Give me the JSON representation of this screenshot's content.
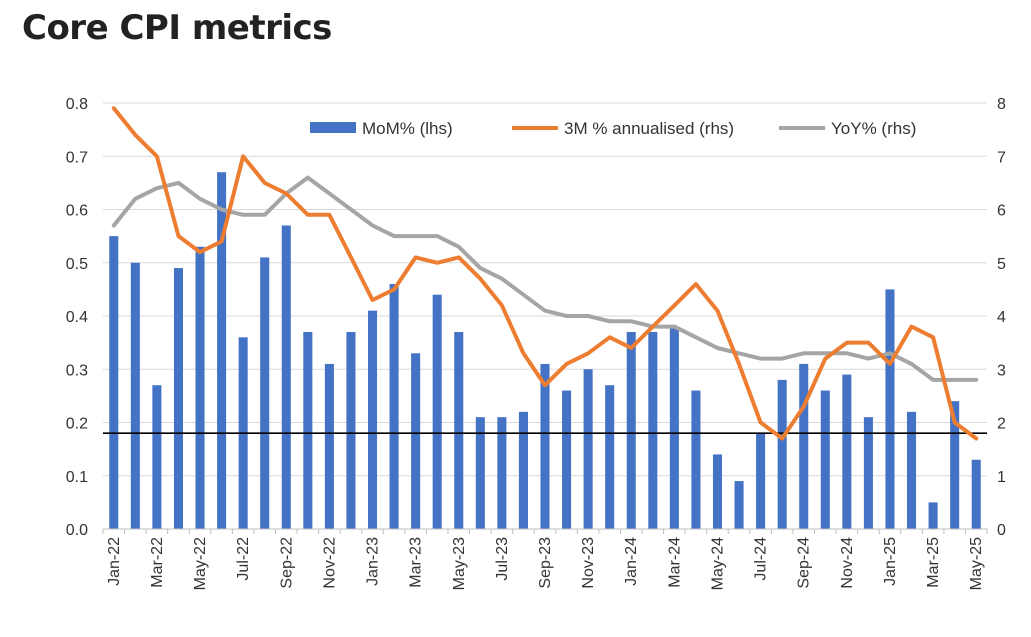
{
  "chart_data": {
    "type": "bar+line",
    "title": "Core CPI metrics",
    "categories": [
      "Jan-22",
      "Feb-22",
      "Mar-22",
      "Apr-22",
      "May-22",
      "Jun-22",
      "Jul-22",
      "Aug-22",
      "Sep-22",
      "Oct-22",
      "Nov-22",
      "Dec-22",
      "Jan-23",
      "Feb-23",
      "Mar-23",
      "Apr-23",
      "May-23",
      "Jun-23",
      "Jul-23",
      "Aug-23",
      "Sep-23",
      "Oct-23",
      "Nov-23",
      "Dec-23",
      "Jan-24",
      "Feb-24",
      "Mar-24",
      "Apr-24",
      "May-24",
      "Jun-24",
      "Jul-24",
      "Aug-24",
      "Sep-24",
      "Oct-24",
      "Nov-24",
      "Dec-24",
      "Jan-25",
      "Feb-25",
      "Mar-25",
      "Apr-25",
      "May-25"
    ],
    "x_tick_labels": [
      "Jan-22",
      "Mar-22",
      "May-22",
      "Jul-22",
      "Sep-22",
      "Nov-22",
      "Jan-23",
      "Mar-23",
      "May-23",
      "Jul-23",
      "Sep-23",
      "Nov-23",
      "Jan-24",
      "Mar-24",
      "May-24",
      "Jul-24",
      "Sep-24",
      "Nov-24",
      "Jan-25",
      "Mar-25",
      "May-25"
    ],
    "series": [
      {
        "name": "MoM% (lhs)",
        "type": "bar",
        "axis": "left",
        "color": "#4472C4",
        "values": [
          0.55,
          0.5,
          0.27,
          0.49,
          0.53,
          0.67,
          0.36,
          0.51,
          0.57,
          0.37,
          0.31,
          0.37,
          0.41,
          0.46,
          0.33,
          0.44,
          0.37,
          0.21,
          0.21,
          0.22,
          0.31,
          0.26,
          0.3,
          0.27,
          0.37,
          0.37,
          0.38,
          0.26,
          0.14,
          0.09,
          0.18,
          0.28,
          0.31,
          0.26,
          0.29,
          0.21,
          0.45,
          0.22,
          0.05,
          0.24,
          0.13
        ]
      },
      {
        "name": "3M % annualised (rhs)",
        "type": "line",
        "axis": "right",
        "color": "#ED7D31",
        "values": [
          7.9,
          7.4,
          7.0,
          5.5,
          5.2,
          5.4,
          7.0,
          6.5,
          6.3,
          5.9,
          5.9,
          5.1,
          4.3,
          4.5,
          5.1,
          5.0,
          5.1,
          4.7,
          4.2,
          3.3,
          2.7,
          3.1,
          3.3,
          3.6,
          3.4,
          3.8,
          4.2,
          4.6,
          4.1,
          3.1,
          2.0,
          1.7,
          2.3,
          3.2,
          3.5,
          3.5,
          3.1,
          3.8,
          3.6,
          2.0,
          1.7
        ]
      },
      {
        "name": "YoY% (rhs)",
        "type": "line",
        "axis": "right",
        "color": "#A5A5A5",
        "values": [
          5.7,
          6.2,
          6.4,
          6.5,
          6.2,
          6.0,
          5.9,
          5.9,
          6.3,
          6.6,
          6.3,
          6.0,
          5.7,
          5.5,
          5.5,
          5.5,
          5.3,
          4.9,
          4.7,
          4.4,
          4.1,
          4.0,
          4.0,
          3.9,
          3.9,
          3.8,
          3.8,
          3.6,
          3.4,
          3.3,
          3.2,
          3.2,
          3.3,
          3.3,
          3.3,
          3.2,
          3.3,
          3.1,
          2.8,
          2.8,
          2.8
        ]
      }
    ],
    "y_left": {
      "min": 0,
      "max": 0.8,
      "step": 0.1,
      "tick_labels": [
        "0.0",
        "0.1",
        "0.2",
        "0.3",
        "0.4",
        "0.5",
        "0.6",
        "0.7",
        "0.8"
      ]
    },
    "y_right": {
      "min": 0,
      "max": 8,
      "step": 1,
      "tick_labels": [
        "0",
        "1",
        "2",
        "3",
        "4",
        "5",
        "6",
        "7",
        "8"
      ]
    },
    "reference_line": {
      "axis": "left",
      "value": 0.18,
      "color": "#000000"
    },
    "legend": {
      "position": "top-right",
      "entries": [
        "MoM% (lhs)",
        "3M % annualised (rhs)",
        "YoY% (rhs)"
      ]
    },
    "grid": "horizontal"
  }
}
